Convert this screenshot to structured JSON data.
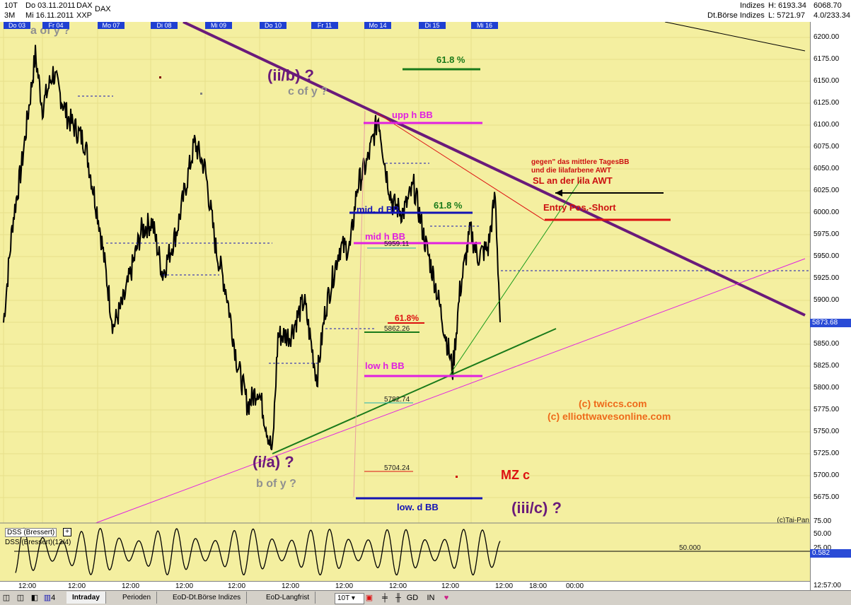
{
  "header": {
    "period1": "10T",
    "from": "Do 03.11.2011",
    "symbol1": "DAX",
    "period2": "3M",
    "to": "Mi 16.11.2011",
    "exch": "XXP",
    "symbol2": "DAX",
    "group1": "Indizes",
    "group2": "Dt.Börse Indizes",
    "high": "H: 6193.34",
    "low": "L: 5721.97",
    "val1": "6068.70",
    "val2": "4.0/233.34"
  },
  "days": [
    "Do 03",
    "Fr 04",
    "Mo 07",
    "Di 08",
    "Mi 09",
    "Do 10",
    "Fr 11",
    "Mo 14",
    "Di 15",
    "Mi 16"
  ],
  "last_price": "5873.68",
  "copyright_tai": "(c)Tai-Pan",
  "oscillator": {
    "label_box": "DSS (Bressert)",
    "label": "DSS (Bressert)(13/4)",
    "mid_label": "50.000",
    "ticks": [
      "75.00",
      "50.00",
      "25.00"
    ],
    "last": "0.582",
    "mid": 50
  },
  "time_axis": [
    "12:00",
    "12:00",
    "12:00",
    "12:00",
    "12:00",
    "12:00",
    "12:00",
    "12:00",
    "12:00",
    "12:00",
    "18:00",
    "00:00"
  ],
  "clock": "12:57:00",
  "footer": {
    "tabs": [
      "Intraday",
      "Perioden",
      "EoD-Dt.Börse Indizes",
      "EoD-Langfrist"
    ],
    "select": "10T",
    "buttons": [
      "GD",
      "IN"
    ],
    "count": "4"
  },
  "colors": {
    "purple": "#6a1a7a",
    "magenta": "#e020e0",
    "green": "#1a7a1a",
    "red": "#dd1111",
    "blue": "#1414b4",
    "background": "#f4efa0"
  },
  "chart_data": {
    "type": "line",
    "title": "DAX",
    "xlabel": "",
    "ylabel": "",
    "ylim": [
      5650,
      6220
    ],
    "y_ticks": [
      5675,
      5700,
      5725,
      5750,
      5775,
      5800,
      5825,
      5850,
      5875,
      5900,
      5925,
      5950,
      5975,
      6000,
      6025,
      6050,
      6075,
      6100,
      6125,
      6150,
      6175,
      6200
    ],
    "grid": true,
    "series": [
      {
        "days": [
          "Do 03",
          "Fr 04",
          "Mo 07",
          "Di 08",
          "Mi 09",
          "Do 10",
          "Fr 11",
          "Mo 14",
          "Di 15",
          "Mi 16"
        ],
        "values_approx": [
          5860,
          6150,
          5950,
          5920,
          6100,
          5760,
          5900,
          6010,
          5850,
          6020
        ]
      }
    ],
    "price_labels": [
      "5959.11",
      "5862.26",
      "5782.74",
      "5704.24"
    ],
    "annotations": [
      "a of y ?",
      "(ii/b) ?",
      "c of y ?",
      "(i/a) ?",
      "b of y ?",
      "(iii/c) ?",
      "upp h BB",
      "mid. d BB",
      "mid h BB",
      "low h BB",
      "low. d BB",
      "61.8 %",
      "61.8 %",
      "61.8%",
      "gegen\" das mittlere TagesBB",
      "und die lilafarbene AWT",
      "SL an der lila AWT",
      "Entry Pos.-Short",
      "MZ c",
      "(c) twiccs.com",
      "(c) elliottwavesonline.com"
    ]
  }
}
